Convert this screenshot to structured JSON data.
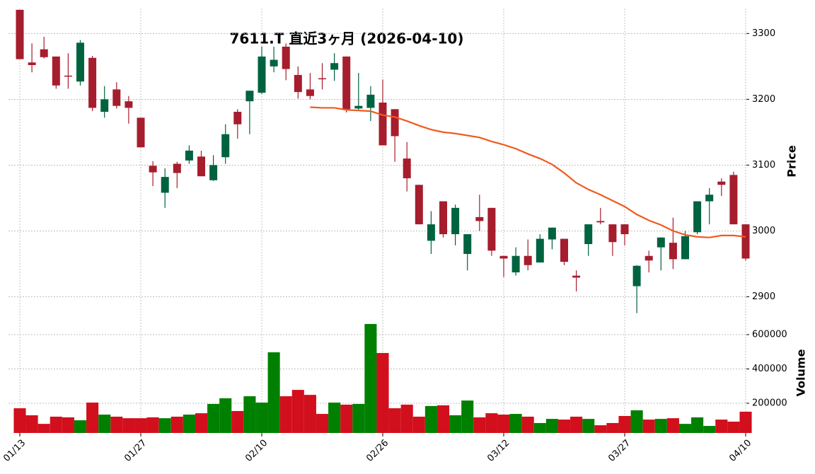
{
  "chart_data": [
    {
      "type": "candlestick",
      "title": "7611.T 直近3ヶ月 (2026-04-10)",
      "ylabel": "Price",
      "categories": [
        "01/13",
        null,
        null,
        null,
        null,
        null,
        null,
        null,
        null,
        null,
        "01/27",
        null,
        null,
        null,
        null,
        null,
        null,
        null,
        null,
        null,
        "02/10",
        null,
        null,
        null,
        null,
        null,
        null,
        null,
        null,
        null,
        "02/26",
        null,
        null,
        null,
        null,
        null,
        null,
        null,
        null,
        null,
        "03/12",
        null,
        null,
        null,
        null,
        null,
        null,
        null,
        null,
        null,
        "03/27",
        null,
        null,
        null,
        null,
        null,
        null,
        null,
        null,
        null,
        "04/10"
      ],
      "open": [
        3336,
        3256,
        3276,
        3265,
        3236,
        3227,
        3263,
        3181,
        3215,
        3197,
        3172,
        3099,
        3058,
        3102,
        3107,
        3113,
        3077,
        3112,
        3181,
        3197,
        3210,
        3250,
        3280,
        3237,
        3215,
        3232,
        3245,
        3265,
        3186,
        3187,
        3195,
        3185,
        3110,
        3070,
        2985,
        3045,
        2995,
        2965,
        3021,
        3035,
        2962,
        2937,
        2962,
        2952,
        2987,
        2988,
        2932,
        2980,
        3015,
        3010,
        3010,
        2916,
        2962,
        2975,
        2982,
        2957,
        2998,
        3045,
        3075,
        3085,
        3010
      ],
      "high": [
        3336,
        3285,
        3295,
        3265,
        3270,
        3290,
        3266,
        3220,
        3226,
        3205,
        3172,
        3106,
        3095,
        3105,
        3130,
        3122,
        3115,
        3162,
        3185,
        3213,
        3280,
        3280,
        3285,
        3250,
        3240,
        3255,
        3270,
        3265,
        3240,
        3220,
        3230,
        3185,
        3135,
        3070,
        3030,
        3045,
        3040,
        2995,
        3055,
        3035,
        2962,
        2975,
        2987,
        2995,
        3005,
        2988,
        2940,
        3010,
        3035,
        3010,
        3010,
        2948,
        2970,
        2990,
        3020,
        3000,
        3045,
        3065,
        3080,
        3090,
        3010
      ],
      "low": [
        3261,
        3241,
        3262,
        3216,
        3216,
        3221,
        3182,
        3172,
        3186,
        3163,
        3127,
        3068,
        3035,
        3065,
        3102,
        3083,
        3076,
        3102,
        3140,
        3147,
        3208,
        3241,
        3229,
        3201,
        3200,
        3215,
        3228,
        3180,
        3183,
        3167,
        3130,
        3105,
        3060,
        3010,
        2965,
        2990,
        2978,
        2940,
        3000,
        2962,
        2930,
        2932,
        2940,
        2952,
        2972,
        2948,
        2908,
        2962,
        3010,
        2962,
        2978,
        2875,
        2937,
        2940,
        2942,
        2957,
        2995,
        3010,
        3053,
        3010,
        2955
      ],
      "close": [
        3261,
        3252,
        3264,
        3221,
        3235,
        3286,
        3187,
        3200,
        3190,
        3187,
        3127,
        3089,
        3082,
        3088,
        3122,
        3083,
        3100,
        3147,
        3162,
        3213,
        3265,
        3260,
        3246,
        3211,
        3205,
        3231,
        3255,
        3185,
        3190,
        3207,
        3130,
        3144,
        3080,
        3010,
        3010,
        2995,
        3035,
        2995,
        3015,
        2970,
        2958,
        2962,
        2948,
        2988,
        3005,
        2953,
        2929,
        3010,
        3013,
        2983,
        2995,
        2947,
        2955,
        2990,
        2957,
        2992,
        3045,
        3055,
        3070,
        3010,
        2958
      ],
      "up_color": "#006340",
      "down_color": "#a61d2d",
      "series": [
        {
          "color": "#f05a1e",
          "values": [
            null,
            null,
            null,
            null,
            null,
            null,
            null,
            null,
            null,
            null,
            null,
            null,
            null,
            null,
            null,
            null,
            null,
            null,
            null,
            null,
            null,
            null,
            null,
            null,
            3188,
            3187,
            3187,
            3184,
            3183,
            3182,
            3176,
            3173,
            3167,
            3160,
            3154,
            3150,
            3148,
            3145,
            3142,
            3136,
            3131,
            3125,
            3117,
            3110,
            3101,
            3088,
            3073,
            3063,
            3055,
            3046,
            3037,
            3025,
            3016,
            3009,
            3000,
            2994,
            2991,
            2990,
            2993,
            2993,
            2991
          ]
        }
      ],
      "ylim": [
        2880,
        3338
      ],
      "yticks": [
        2900,
        3000,
        3100,
        3200,
        3300
      ],
      "grid": true
    },
    {
      "type": "bar",
      "ylabel": "Volume",
      "values": [
        171000,
        130000,
        80000,
        122000,
        118000,
        101000,
        204000,
        134000,
        122000,
        113000,
        113000,
        118000,
        113000,
        122000,
        134000,
        142000,
        196000,
        229000,
        155000,
        241000,
        204000,
        497000,
        241000,
        278000,
        249000,
        138000,
        204000,
        192000,
        196000,
        662000,
        493000,
        171000,
        192000,
        122000,
        184000,
        188000,
        130000,
        216000,
        118000,
        142000,
        134000,
        138000,
        122000,
        85000,
        109000,
        105000,
        122000,
        109000,
        72000,
        85000,
        126000,
        159000,
        105000,
        109000,
        113000,
        80000,
        118000,
        68000,
        105000,
        93000,
        151000
      ],
      "up_color": "#008000",
      "down_color": "#d20f1c",
      "ylim": [
        27000,
        736000
      ],
      "yticks": [
        200000,
        400000,
        600000
      ],
      "grid": true
    }
  ]
}
